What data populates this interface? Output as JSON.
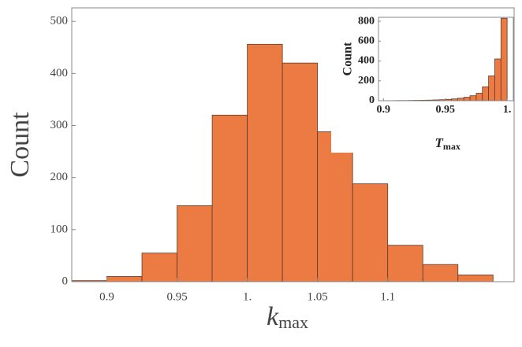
{
  "chart_data": [
    {
      "type": "histogram",
      "x_label": "k",
      "x_label_sub": "max",
      "y_label": "Count",
      "bins": [
        0.875,
        0.9,
        0.925,
        0.95,
        0.975,
        1.0,
        1.025,
        1.05,
        1.075,
        1.1,
        1.125,
        1.15,
        1.175
      ],
      "values": [
        2,
        10,
        55,
        146,
        320,
        456,
        420,
        288,
        188,
        70,
        33,
        13
      ],
      "color": "#eb7b42",
      "edge_color": "#5b3b2b",
      "xlim": [
        0.875,
        1.19
      ],
      "xticks": [
        0.9,
        0.95,
        {
          "value": 1,
          "label": "1."
        },
        1.05,
        1.1
      ],
      "ylim": [
        0,
        526
      ],
      "yticks": [
        0,
        100,
        200,
        300,
        400,
        500
      ]
    },
    {
      "type": "histogram",
      "x_label": "T",
      "x_label_sub": "max",
      "y_label": "Count",
      "bins": [
        0.9,
        0.905,
        0.91,
        0.915,
        0.92,
        0.925,
        0.93,
        0.935,
        0.94,
        0.945,
        0.95,
        0.955,
        0.96,
        0.965,
        0.97,
        0.975,
        0.98,
        0.985,
        0.99,
        0.995,
        1.0
      ],
      "values": [
        1,
        1,
        2,
        2,
        3,
        4,
        5,
        6,
        8,
        10,
        14,
        18,
        25,
        35,
        50,
        75,
        140,
        250,
        420,
        830
      ],
      "color": "#eb7b42",
      "edge_color": "#5b3b2b",
      "xlim": [
        0.896,
        1.005
      ],
      "xticks": [
        0.9,
        0.95,
        {
          "value": 1,
          "label": "1."
        }
      ],
      "ylim": [
        0,
        840
      ],
      "yticks": [
        0,
        200,
        400,
        600,
        800
      ]
    }
  ]
}
